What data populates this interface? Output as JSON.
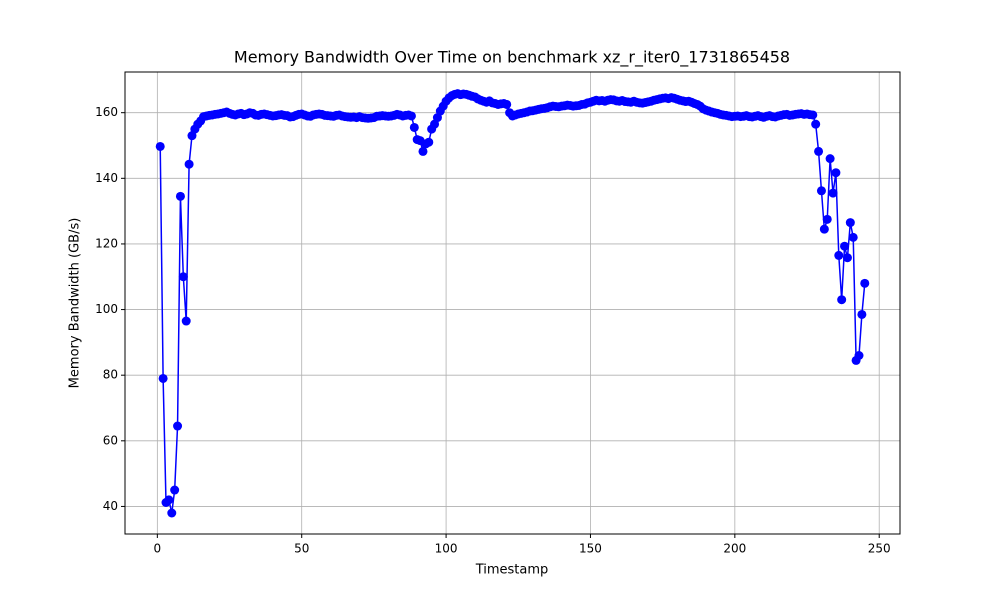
{
  "chart_data": {
    "type": "line",
    "title": "Memory Bandwidth Over Time on benchmark xz_r_iter0_1731865458",
    "xlabel": "Timestamp",
    "ylabel": "Memory Bandwidth (GB/s)",
    "xlim": [
      -11.2,
      257.2
    ],
    "ylim": [
      31.6,
      172.4
    ],
    "xticks": [
      0,
      50,
      100,
      150,
      200,
      250
    ],
    "yticks": [
      40,
      60,
      80,
      100,
      120,
      140,
      160
    ],
    "grid": true,
    "x": [
      1,
      2,
      3,
      4,
      5,
      6,
      7,
      8,
      9,
      10,
      11,
      12,
      13,
      14,
      15,
      16,
      17,
      18,
      19,
      20,
      21,
      22,
      23,
      24,
      25,
      26,
      27,
      28,
      29,
      30,
      31,
      32,
      33,
      34,
      35,
      36,
      37,
      38,
      39,
      40,
      41,
      42,
      43,
      44,
      45,
      46,
      47,
      48,
      49,
      50,
      51,
      52,
      53,
      54,
      55,
      56,
      57,
      58,
      59,
      60,
      61,
      62,
      63,
      64,
      65,
      66,
      67,
      68,
      69,
      70,
      71,
      72,
      73,
      74,
      75,
      76,
      77,
      78,
      79,
      80,
      81,
      82,
      83,
      84,
      85,
      86,
      87,
      88,
      89,
      90,
      91,
      92,
      93,
      94,
      95,
      96,
      97,
      98,
      99,
      100,
      101,
      102,
      103,
      104,
      105,
      106,
      107,
      108,
      109,
      110,
      111,
      112,
      113,
      114,
      115,
      116,
      117,
      118,
      119,
      120,
      121,
      122,
      123,
      124,
      125,
      126,
      127,
      128,
      129,
      130,
      131,
      132,
      133,
      134,
      135,
      136,
      137,
      138,
      139,
      140,
      141,
      142,
      143,
      144,
      145,
      146,
      147,
      148,
      149,
      150,
      151,
      152,
      153,
      154,
      155,
      156,
      157,
      158,
      159,
      160,
      161,
      162,
      163,
      164,
      165,
      166,
      167,
      168,
      169,
      170,
      171,
      172,
      173,
      174,
      175,
      176,
      177,
      178,
      179,
      180,
      181,
      182,
      183,
      184,
      185,
      186,
      187,
      188,
      189,
      190,
      191,
      192,
      193,
      194,
      195,
      196,
      197,
      198,
      199,
      200,
      201,
      202,
      203,
      204,
      205,
      206,
      207,
      208,
      209,
      210,
      211,
      212,
      213,
      214,
      215,
      216,
      217,
      218,
      219,
      220,
      221,
      222,
      223,
      224,
      225,
      226,
      227,
      228,
      229,
      230,
      231,
      232,
      233,
      234,
      235,
      236,
      237,
      238,
      239,
      240,
      241,
      242,
      243,
      244,
      245
    ],
    "series": [
      {
        "color": "#0000ff",
        "values": [
          149.7,
          79,
          41.2,
          42,
          38,
          45,
          64.5,
          134.5,
          110,
          96.5,
          144.3,
          153,
          155,
          156.5,
          157.5,
          158.8,
          159,
          159.2,
          159.3,
          159.5,
          159.6,
          159.8,
          160,
          160.2,
          159.8,
          159.5,
          159.3,
          159.6,
          159.8,
          159.4,
          159.6,
          160,
          159.8,
          159.3,
          159.2,
          159.5,
          159.6,
          159.4,
          159.2,
          159,
          159.1,
          159.3,
          159.4,
          159.2,
          159.1,
          158.7,
          158.8,
          159.2,
          159.5,
          159.6,
          159.3,
          159,
          158.9,
          159.3,
          159.5,
          159.6,
          159.5,
          159.2,
          159.1,
          159,
          158.9,
          159.2,
          159.3,
          159,
          158.8,
          158.7,
          158.6,
          158.7,
          158.5,
          158.8,
          158.5,
          158.4,
          158.3,
          158.4,
          158.5,
          158.9,
          159,
          159.1,
          159,
          158.9,
          159,
          159.2,
          159.5,
          159.3,
          159,
          159.2,
          159.3,
          159,
          155.5,
          151.8,
          151.5,
          148.2,
          150.5,
          151,
          155,
          156.5,
          158.5,
          160.5,
          162,
          163.5,
          164.5,
          165.2,
          165.6,
          165.8,
          165.5,
          165.7,
          165.6,
          165.3,
          165,
          164.8,
          164.2,
          163.8,
          163.5,
          163.2,
          163.6,
          163,
          162.8,
          162.5,
          162.7,
          162.8,
          162.5,
          160,
          159,
          159.3,
          159.6,
          159.8,
          160,
          160.2,
          160.5,
          160.6,
          160.8,
          161,
          161.2,
          161.3,
          161.5,
          161.8,
          162,
          161.9,
          161.8,
          162,
          162.1,
          162.3,
          162.2,
          162,
          162.1,
          162.2,
          162.5,
          162.6,
          163,
          163.2,
          163.5,
          163.8,
          163.6,
          163.7,
          163.5,
          163.8,
          164,
          163.9,
          163.6,
          163.5,
          163.7,
          163.4,
          163.3,
          163.2,
          163.5,
          163.2,
          163,
          162.9,
          163.1,
          163.3,
          163.5,
          163.8,
          164,
          164.2,
          164.4,
          164.5,
          164.3,
          164.6,
          164.4,
          164.1,
          163.8,
          163.6,
          163.4,
          163.5,
          163.2,
          162.8,
          162.5,
          162,
          161.2,
          160.8,
          160.5,
          160.2,
          160,
          159.8,
          159.5,
          159.3,
          159.2,
          159,
          158.8,
          158.9,
          159,
          158.8,
          158.9,
          159.1,
          158.8,
          158.7,
          158.9,
          159.1,
          158.8,
          158.6,
          158.9,
          159.1,
          158.8,
          158.7,
          159,
          159.2,
          159.4,
          159.5,
          159.2,
          159.3,
          159.5,
          159.6,
          159.7,
          159.5,
          159.6,
          159.4,
          159.3,
          156.5,
          148.2,
          136.2,
          124.5,
          127.5,
          146,
          135.5,
          141.7,
          116.5,
          103,
          119.3,
          115.8,
          126.5,
          122,
          84.5,
          86,
          98.5,
          108
        ]
      }
    ]
  }
}
